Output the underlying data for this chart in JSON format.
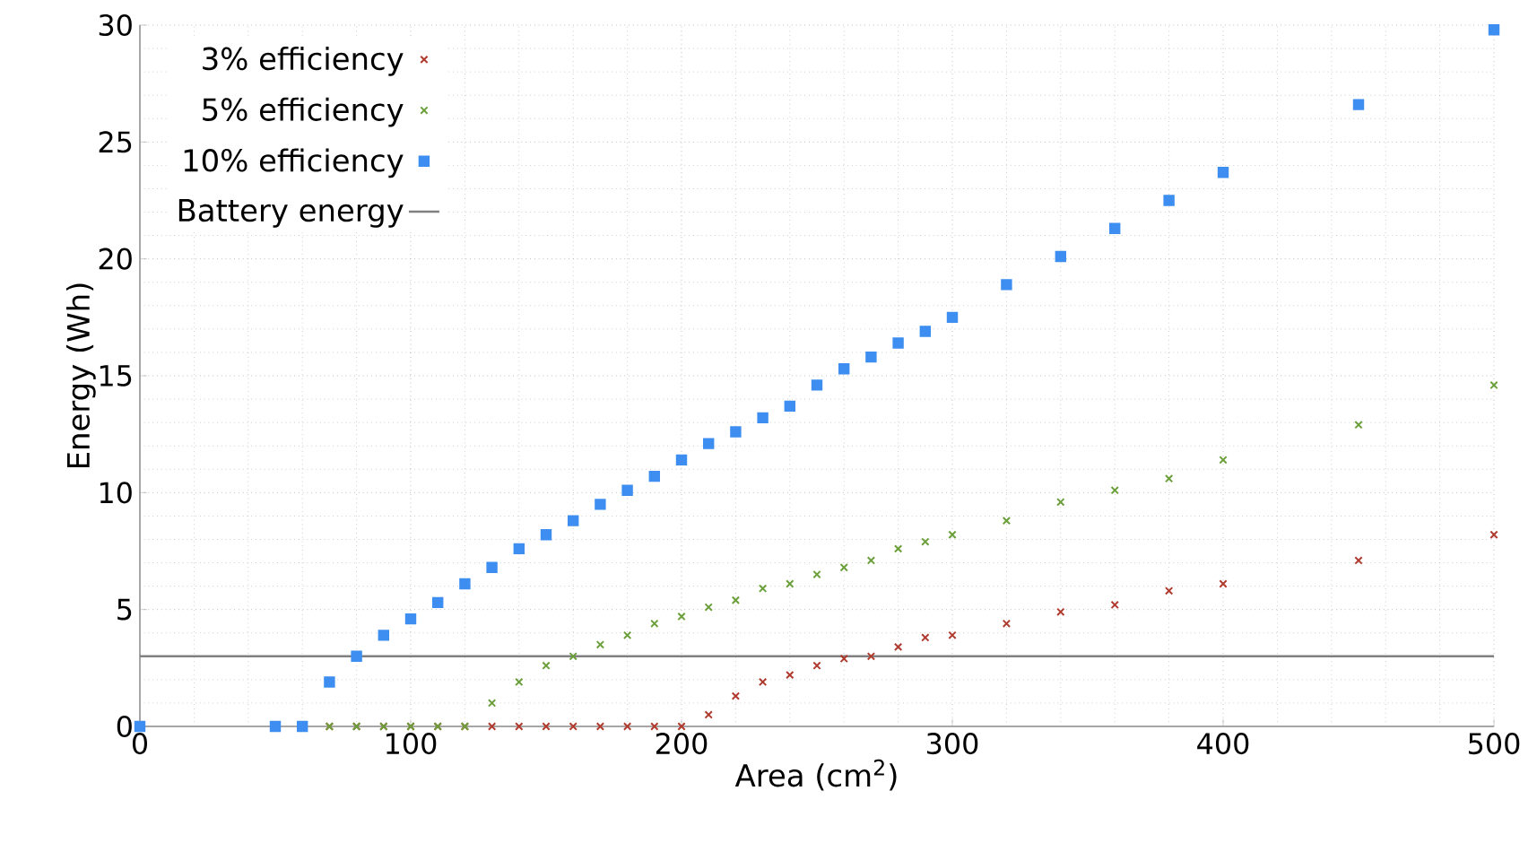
{
  "chart_data": {
    "type": "scatter",
    "xlabel": "Area (cm$^{2}$)",
    "ylabel": "Energy (Wh)",
    "xlim": [
      0,
      500
    ],
    "ylim": [
      0,
      30
    ],
    "xticks": [
      0,
      100,
      200,
      300,
      400,
      500
    ],
    "yticks": [
      0,
      5,
      10,
      15,
      20,
      25,
      30
    ],
    "grid": true,
    "legend": "top left",
    "series": [
      {
        "name": "3% efficiency",
        "color": "#b03a2e",
        "marker": "cross",
        "x": [
          70,
          80,
          90,
          100,
          110,
          120,
          130,
          140,
          150,
          160,
          170,
          180,
          190,
          200,
          210,
          220,
          230,
          240,
          250,
          260,
          270,
          280,
          290,
          300,
          320,
          340,
          360,
          380,
          400,
          450,
          500
        ],
        "values": [
          0,
          0,
          0,
          0,
          0,
          0,
          0,
          0,
          0,
          0,
          0,
          0,
          0,
          0,
          0.5,
          1.3,
          1.9,
          2.2,
          2.6,
          2.9,
          3.0,
          3.4,
          3.8,
          3.9,
          4.4,
          4.9,
          5.2,
          5.8,
          6.1,
          7.1,
          8.2
        ]
      },
      {
        "name": "5% efficiency",
        "color": "#6a9f3a",
        "marker": "cross",
        "x": [
          70,
          80,
          90,
          100,
          110,
          120,
          130,
          140,
          150,
          160,
          170,
          180,
          190,
          200,
          210,
          220,
          230,
          240,
          250,
          260,
          270,
          280,
          290,
          300,
          320,
          340,
          360,
          380,
          400,
          450,
          500
        ],
        "values": [
          0,
          0,
          0,
          0,
          0,
          0,
          1.0,
          1.9,
          2.6,
          3.0,
          3.5,
          3.9,
          4.4,
          4.7,
          5.1,
          5.4,
          5.9,
          6.1,
          6.5,
          6.8,
          7.1,
          7.6,
          7.9,
          8.2,
          8.8,
          9.6,
          10.1,
          10.6,
          11.4,
          12.9,
          14.6
        ]
      },
      {
        "name": "10% efficiency",
        "color": "#3d8ef0",
        "marker": "square",
        "x": [
          0,
          50,
          60,
          70,
          80,
          90,
          100,
          110,
          120,
          130,
          140,
          150,
          160,
          170,
          180,
          190,
          200,
          210,
          220,
          230,
          240,
          250,
          260,
          270,
          280,
          290,
          300,
          320,
          340,
          360,
          380,
          400,
          450,
          500
        ],
        "values": [
          0,
          0,
          0,
          1.9,
          3.0,
          3.9,
          4.6,
          5.3,
          6.1,
          6.8,
          7.6,
          8.2,
          8.8,
          9.5,
          10.1,
          10.7,
          11.4,
          12.1,
          12.6,
          13.2,
          13.7,
          14.6,
          15.3,
          15.8,
          16.4,
          16.9,
          17.5,
          18.9,
          20.1,
          21.3,
          22.5,
          23.7,
          26.6,
          29.8
        ]
      }
    ],
    "ref_lines": [
      {
        "axis": "y",
        "value": 3,
        "label": "Battery energy",
        "color": "#808080",
        "line_style": "solid"
      }
    ]
  }
}
